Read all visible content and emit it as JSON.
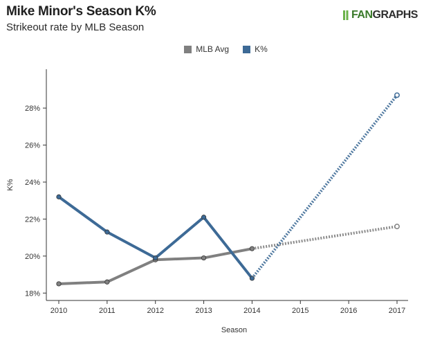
{
  "header": {
    "title": "Mike Minor's Season K%",
    "subtitle": "Strikeout rate by MLB Season",
    "logo_text_a": "FAN",
    "logo_text_b": "GRAPHS"
  },
  "chart_data": {
    "type": "line",
    "xlabel": "Season",
    "ylabel": "K%",
    "ylim": [
      17.6,
      30.1
    ],
    "x_ticks": [
      "2010",
      "2011",
      "2012",
      "2013",
      "2014",
      "2015",
      "2016",
      "2017"
    ],
    "y_ticks": [
      "18%",
      "20%",
      "22%",
      "24%",
      "26%",
      "28%"
    ],
    "y_tick_values": [
      18,
      20,
      22,
      24,
      26,
      28
    ],
    "legend": [
      "MLB Avg",
      "K%"
    ],
    "series": [
      {
        "name": "MLB Avg",
        "color": "#808080",
        "actual": [
          [
            2010,
            18.5
          ],
          [
            2011,
            18.6
          ],
          [
            2012,
            19.8
          ],
          [
            2013,
            19.9
          ],
          [
            2014,
            20.4
          ]
        ],
        "projected": [
          [
            2014,
            20.4
          ],
          [
            2017,
            21.6
          ]
        ]
      },
      {
        "name": "K%",
        "color": "#3d6a96",
        "actual": [
          [
            2010,
            23.2
          ],
          [
            2011,
            21.3
          ],
          [
            2012,
            19.9
          ],
          [
            2013,
            22.1
          ],
          [
            2014,
            18.8
          ]
        ],
        "projected": [
          [
            2014,
            18.8
          ],
          [
            2017,
            28.7
          ]
        ]
      }
    ]
  }
}
